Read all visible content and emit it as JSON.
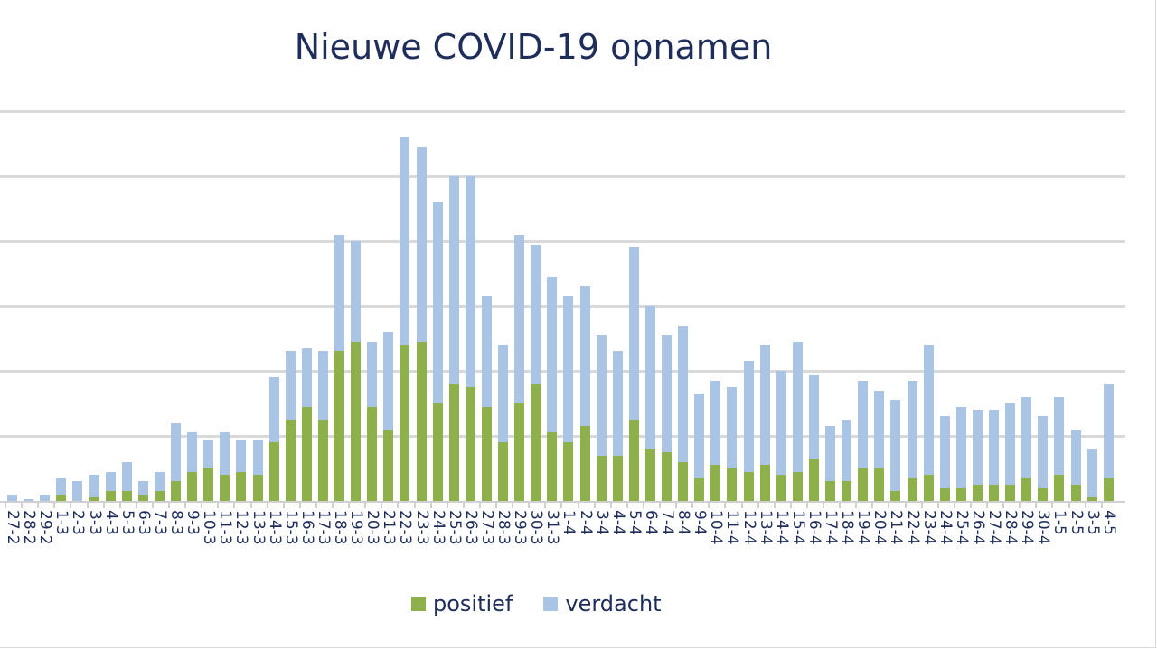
{
  "chart_data": {
    "type": "bar",
    "stacked": true,
    "title": "Nieuwe COVID-19 opnamen",
    "xlabel": "",
    "ylabel": "",
    "y_units_note": "relative units, gridline spacing = 20 (no y tick labels shown)",
    "ylim": [
      0,
      120
    ],
    "grid": true,
    "legend_position": "bottom",
    "categories": [
      "27-2",
      "28-2",
      "29-2",
      "1-3",
      "2-3",
      "3-3",
      "4-3",
      "5-3",
      "6-3",
      "7-3",
      "8-3",
      "9-3",
      "10-3",
      "11-3",
      "12-3",
      "13-3",
      "14-3",
      "15-3",
      "16-3",
      "17-3",
      "18-3",
      "19-3",
      "20-3",
      "21-3",
      "22-3",
      "23-3",
      "24-3",
      "25-3",
      "26-3",
      "27-3",
      "28-3",
      "29-3",
      "30-3",
      "31-3",
      "1-4",
      "2-4",
      "3-4",
      "4-4",
      "5-4",
      "6-4",
      "7-4",
      "8-4",
      "9-4",
      "10-4",
      "11-4",
      "12-4",
      "13-4",
      "14-4",
      "15-4",
      "16-4",
      "17-4",
      "18-4",
      "19-4",
      "20-4",
      "21-4",
      "22-4",
      "23-4",
      "24-4",
      "25-4",
      "26-4",
      "27-4",
      "28-4",
      "29-4",
      "30-4",
      "1-5",
      "2-5",
      "3-5",
      "4-5"
    ],
    "series": [
      {
        "name": "positief",
        "color": "#8db04a",
        "values": [
          0,
          0,
          0,
          2,
          0,
          1,
          3,
          3,
          2,
          3,
          6,
          9,
          10,
          8,
          9,
          8,
          18,
          25,
          29,
          25,
          46,
          49,
          29,
          22,
          48,
          49,
          30,
          36,
          35,
          29,
          18,
          30,
          36,
          21,
          18,
          23,
          14,
          14,
          25,
          16,
          15,
          12,
          7,
          11,
          10,
          9,
          11,
          8,
          9,
          13,
          6,
          6,
          10,
          10,
          3,
          7,
          8,
          4,
          4,
          5,
          5,
          5,
          7,
          4,
          8,
          5,
          1,
          7
        ]
      },
      {
        "name": "verdacht",
        "color": "#a9c4e4",
        "values": [
          2,
          0.5,
          2,
          5,
          6,
          7,
          6,
          9,
          4,
          6,
          18,
          12,
          9,
          13,
          10,
          11,
          20,
          21,
          18,
          21,
          36,
          31,
          20,
          30,
          64,
          60,
          62,
          64,
          65,
          34,
          30,
          52,
          43,
          48,
          45,
          43,
          37,
          32,
          53,
          44,
          36,
          42,
          26,
          26,
          25,
          34,
          37,
          32,
          40,
          26,
          17,
          19,
          27,
          24,
          28,
          30,
          40,
          22,
          25,
          23,
          23,
          25,
          25,
          22,
          24,
          17,
          15,
          29
        ]
      }
    ]
  },
  "legend": {
    "items": [
      {
        "label": "positief",
        "color": "#8db04a"
      },
      {
        "label": "verdacht",
        "color": "#a9c4e4"
      }
    ]
  }
}
